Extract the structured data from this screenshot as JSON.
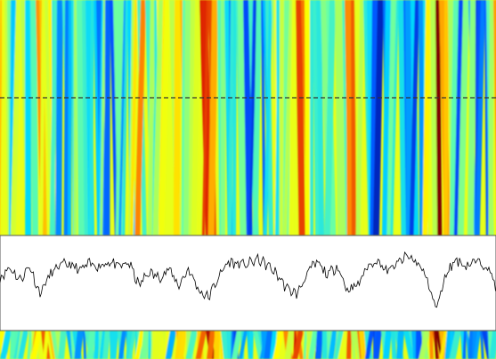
{
  "chart_data": {
    "type": "line",
    "title": "",
    "xlabel": "",
    "ylabel": "",
    "xlim": [
      0,
      1
    ],
    "ylim": [
      0,
      1
    ],
    "grid": false,
    "legend": "none",
    "background": "heatmap",
    "colormap": [
      "#00007f",
      "#0050ff",
      "#00d7ff",
      "#64ffaa",
      "#ffff00",
      "#ff8c00",
      "#dc1e00",
      "#800000"
    ],
    "profile_line_color": "#333333",
    "trace_color": "#000000",
    "trace_panel_background": "#ffffff",
    "profile": {
      "x": [
        0.0,
        0.02,
        0.04,
        0.06,
        0.08,
        0.1,
        0.12,
        0.14,
        0.16,
        0.18,
        0.2,
        0.22,
        0.24,
        0.26,
        0.28,
        0.3,
        0.32,
        0.34,
        0.36,
        0.38,
        0.4,
        0.42,
        0.44,
        0.46,
        0.48,
        0.5,
        0.52,
        0.54,
        0.56,
        0.58,
        0.6,
        0.62,
        0.64,
        0.66,
        0.68,
        0.7,
        0.72,
        0.74,
        0.76,
        0.78,
        0.8,
        0.82,
        0.84,
        0.86,
        0.88,
        0.9,
        0.92,
        0.94,
        0.96,
        0.98,
        1.0
      ],
      "y": [
        0.55,
        0.68,
        0.52,
        0.7,
        0.35,
        0.58,
        0.7,
        0.72,
        0.64,
        0.72,
        0.7,
        0.75,
        0.68,
        0.74,
        0.45,
        0.62,
        0.55,
        0.66,
        0.45,
        0.66,
        0.4,
        0.3,
        0.55,
        0.75,
        0.72,
        0.72,
        0.78,
        0.7,
        0.58,
        0.4,
        0.35,
        0.62,
        0.74,
        0.58,
        0.7,
        0.4,
        0.45,
        0.68,
        0.78,
        0.62,
        0.72,
        0.82,
        0.75,
        0.55,
        0.15,
        0.62,
        0.78,
        0.7,
        0.75,
        0.72,
        0.45
      ]
    }
  }
}
